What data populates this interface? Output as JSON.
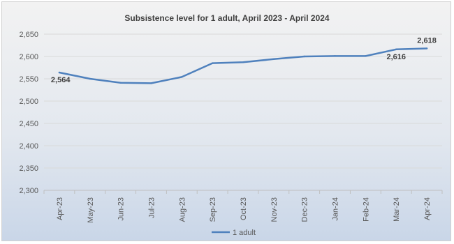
{
  "chart_data": {
    "type": "line",
    "title": "Subsistence level for 1 adult, April 2023 - April 2024",
    "xlabel": "",
    "ylabel": "",
    "categories": [
      "Apr-23",
      "May-23",
      "Jun-23",
      "Jul-23",
      "Aug-23",
      "Sep-23",
      "Oct-23",
      "Nov-23",
      "Dec-23",
      "Jan-24",
      "Feb-24",
      "Mar-24",
      "Apr-24"
    ],
    "series": [
      {
        "name": "1 adult",
        "values": [
          2564,
          2550,
          2541,
          2540,
          2554,
          2585,
          2587,
          2594,
          2600,
          2601,
          2601,
          2616,
          2618
        ],
        "color": "#4f81bd"
      }
    ],
    "ylim": [
      2300,
      2650
    ],
    "yticks": [
      2300,
      2350,
      2400,
      2450,
      2500,
      2550,
      2600,
      2650
    ],
    "ytick_labels": [
      "2,300",
      "2,350",
      "2,400",
      "2,450",
      "2,500",
      "2,550",
      "2,600",
      "2,650"
    ],
    "data_labels": [
      {
        "index": 0,
        "text": "2,564",
        "position": "below"
      },
      {
        "index": 11,
        "text": "2,616",
        "position": "below"
      },
      {
        "index": 12,
        "text": "2,618",
        "position": "above"
      }
    ],
    "grid": true,
    "legend": "bottom"
  }
}
